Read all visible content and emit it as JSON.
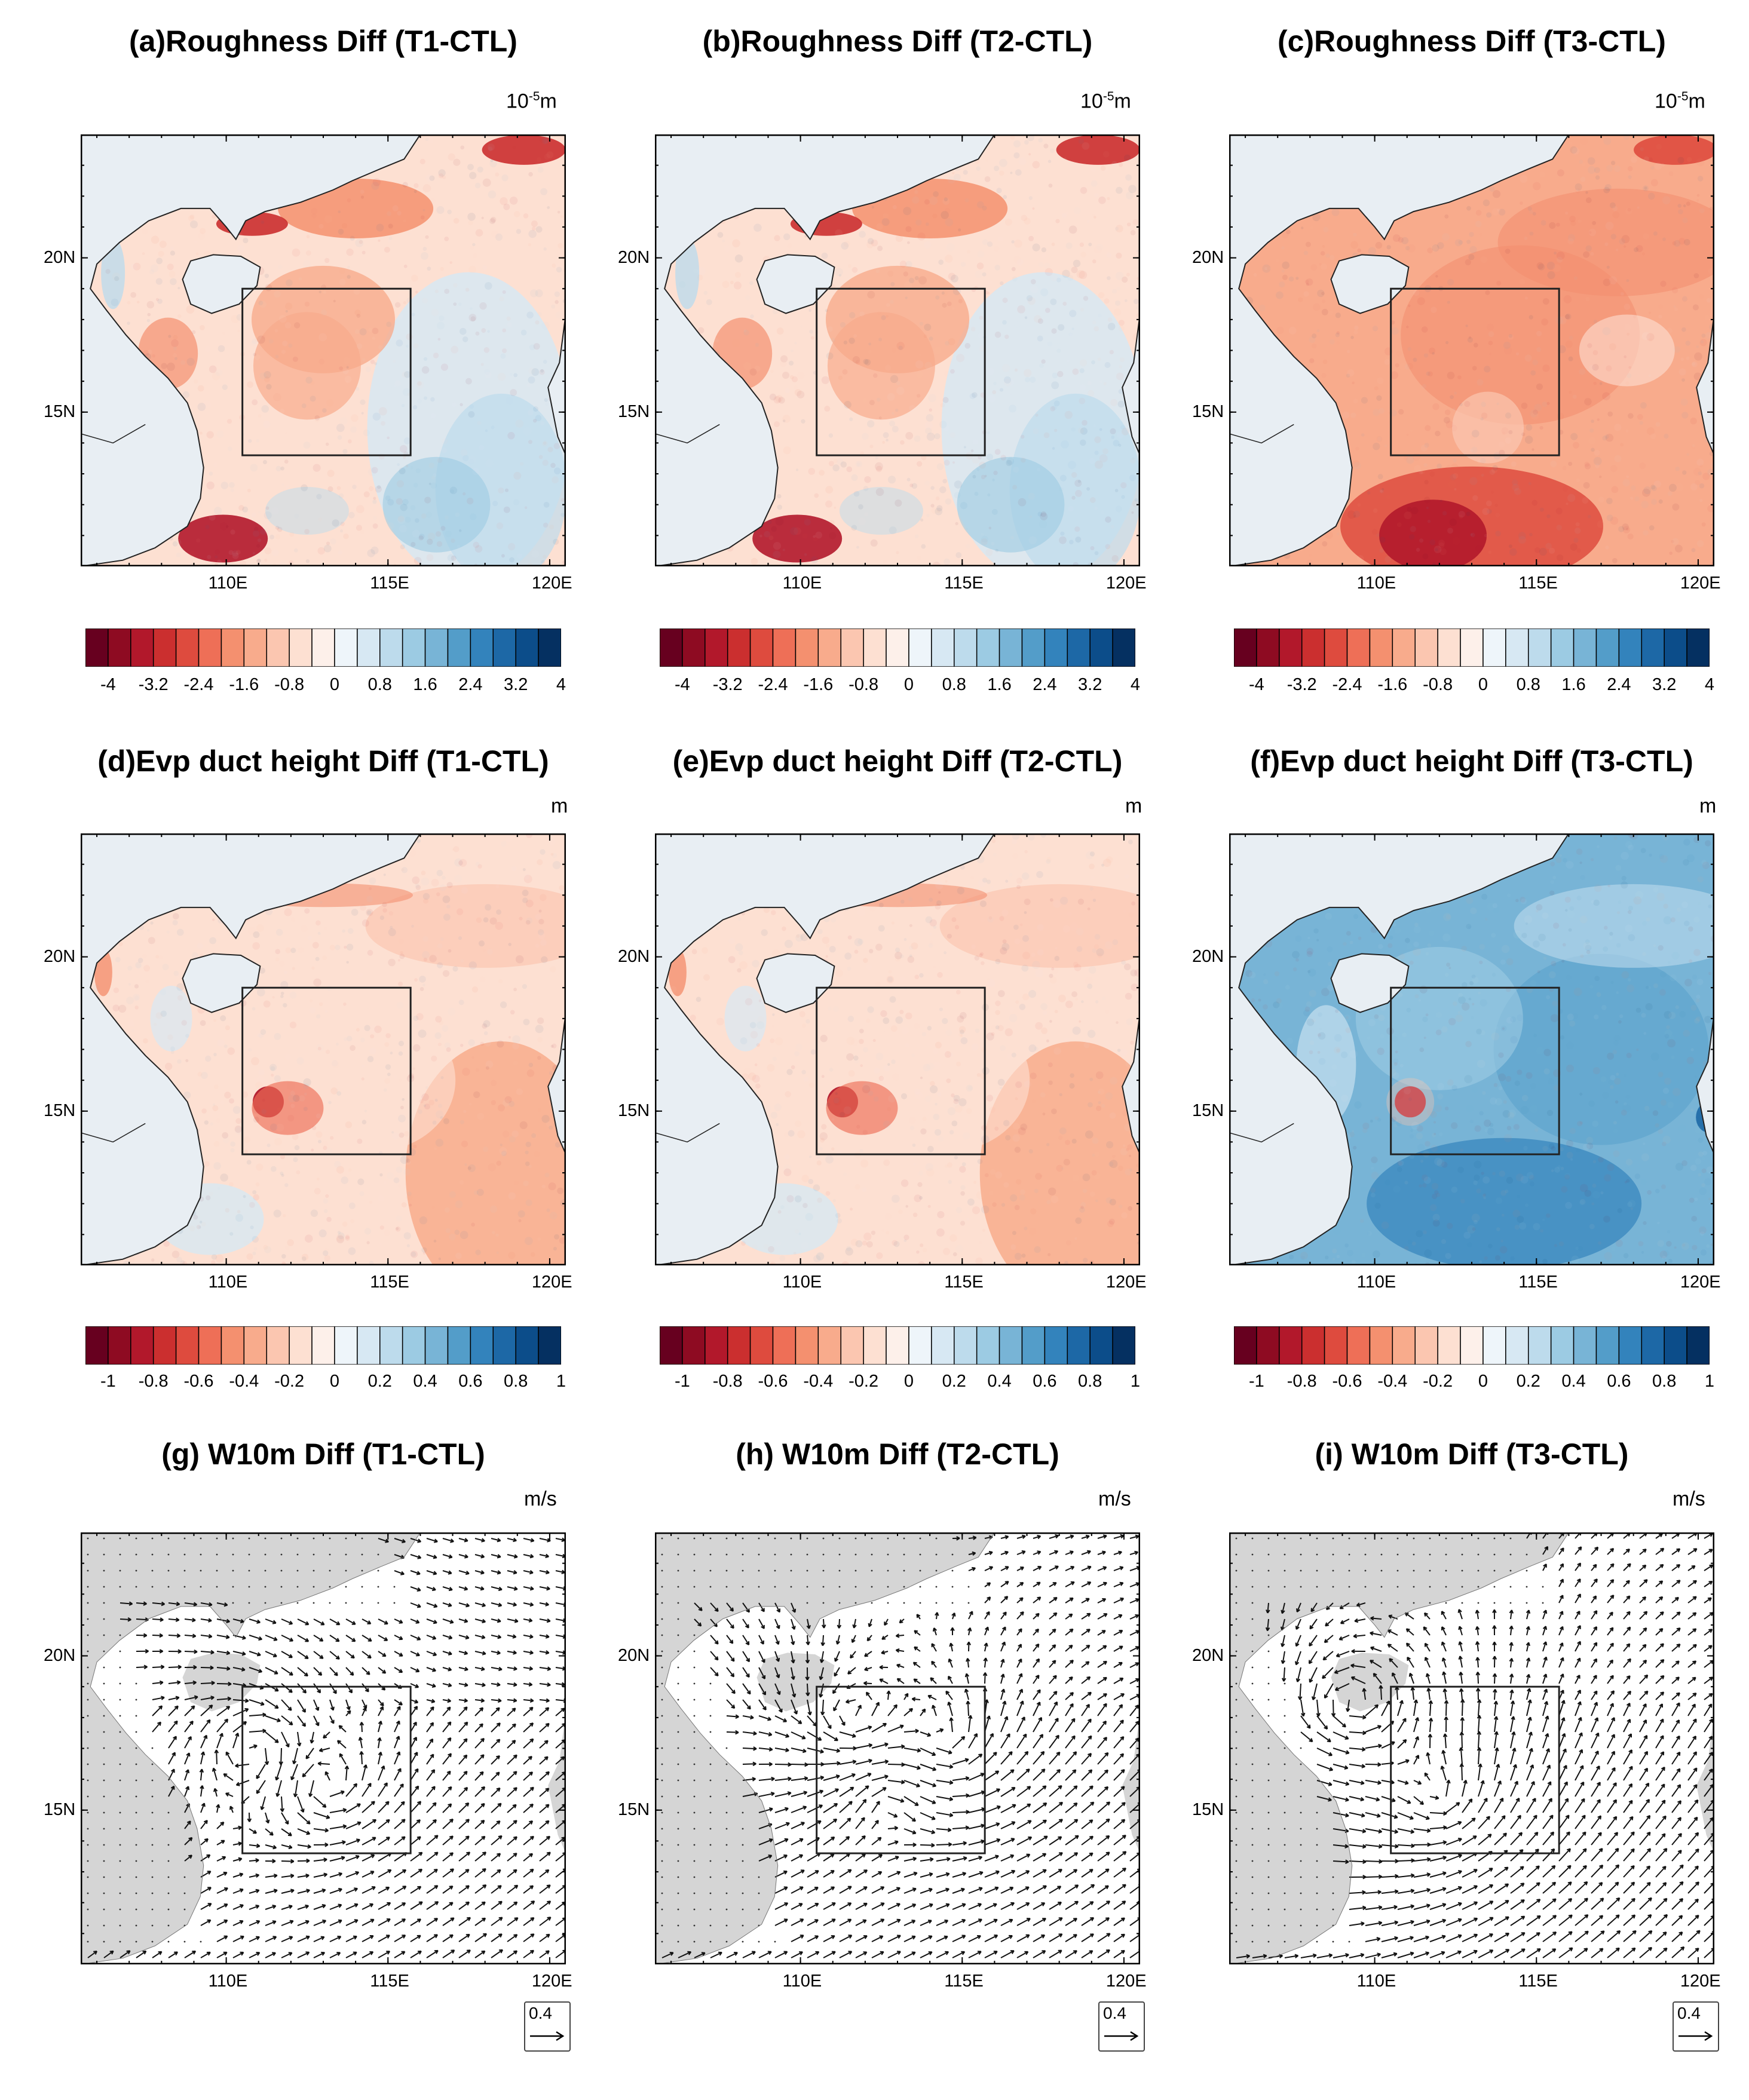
{
  "figure": {
    "lon_labels": [
      "110E",
      "115E",
      "120E"
    ],
    "lat_labels": [
      "20N",
      "15N"
    ],
    "colors": {
      "land": "#e8eef3",
      "wind_land": "#d5d5d5",
      "ocean_neutral": "#f4f4f4",
      "box": "#222222"
    },
    "palette": [
      "#67001f",
      "#8e0b22",
      "#b2182b",
      "#cb2f2f",
      "#de4b3e",
      "#ee6f57",
      "#f4906f",
      "#f8ab8c",
      "#fbc6b0",
      "#fde0d2",
      "#fdf0ea",
      "#eef5fa",
      "#d7e8f3",
      "#bddbec",
      "#9ccbe3",
      "#78b4d6",
      "#539dc9",
      "#3383bc",
      "#1d68a6",
      "#0c4d8a",
      "#053061"
    ]
  },
  "rows": [
    {
      "id": "roughness",
      "unit_base": "10",
      "unit_exp": "-5",
      "unit_suffix": "m",
      "colorbar_ticks": [
        "-4",
        "-3.2",
        "-2.4",
        "-1.6",
        "-0.8",
        "0",
        "0.8",
        "1.6",
        "2.4",
        "3.2",
        "4"
      ],
      "panels": [
        {
          "title": "(a)Roughness Diff (T1-CTL)",
          "pattern": "mixed_red_north"
        },
        {
          "title": "(b)Roughness Diff (T2-CTL)",
          "pattern": "mixed_red_north"
        },
        {
          "title": "(c)Roughness Diff (T3-CTL)",
          "pattern": "red_all"
        }
      ]
    },
    {
      "id": "duct",
      "unit": "m",
      "colorbar_ticks": [
        "-1",
        "-0.8",
        "-0.6",
        "-0.4",
        "-0.2",
        "0",
        "0.2",
        "0.4",
        "0.6",
        "0.8",
        "1"
      ],
      "panels": [
        {
          "title": "(d)Evp duct height Diff (T1-CTL)",
          "pattern": "red_light"
        },
        {
          "title": "(e)Evp duct height Diff (T2-CTL)",
          "pattern": "red_light"
        },
        {
          "title": "(f)Evp duct height Diff (T3-CTL)",
          "pattern": "blue_all"
        }
      ]
    },
    {
      "id": "wind",
      "unit": "m/s",
      "ref_vector": "0.4",
      "panels": [
        {
          "title": "(g) W10m Diff (T1-CTL)",
          "pattern": "wind1"
        },
        {
          "title": "(h) W10m Diff (T2-CTL)",
          "pattern": "wind2"
        },
        {
          "title": "(i) W10m Diff (T3-CTL)",
          "pattern": "wind3"
        }
      ]
    }
  ]
}
